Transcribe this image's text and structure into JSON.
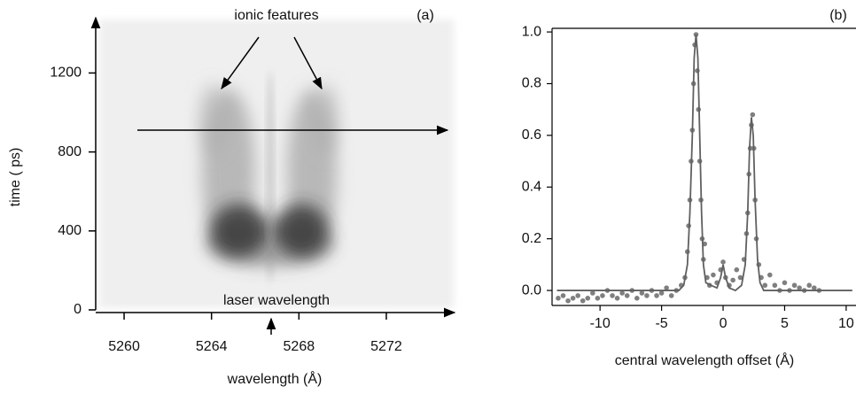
{
  "chart_data": [
    {
      "type": "image",
      "panel_label": "(a)",
      "x_label": "wavelength (Å)",
      "y_label": "time ( ps)",
      "annotations": [
        "ionic features",
        "laser wavelength"
      ],
      "xlim": [
        5258.7,
        5274.8
      ],
      "xticks": [
        5260,
        5264,
        5268,
        5272
      ],
      "ylim": [
        0,
        1480
      ],
      "yticks": [
        0,
        400,
        800,
        1200
      ]
    },
    {
      "type": "scatter",
      "panel_label": "(b)",
      "x_label": "central wavelength offset  (Å)",
      "xlim": [
        -13.9,
        10.8
      ],
      "xticks": [
        -10,
        -5,
        0,
        5,
        10
      ],
      "ylim": [
        -0.058,
        1.014
      ],
      "yticks": [
        {
          "value": 0,
          "label": "0.0"
        },
        {
          "value": 0.2,
          "label": "0.2"
        },
        {
          "value": 0.4,
          "label": "0.4"
        },
        {
          "value": 0.6,
          "label": "0.6"
        },
        {
          "value": 0.8,
          "label": "0.8"
        },
        {
          "value": 1,
          "label": "1.0"
        }
      ],
      "series": [
        {
          "mode": "markers",
          "color": "#7f7f7f",
          "x": [
            -13.4,
            -13.0,
            -12.6,
            -12.2,
            -11.8,
            -11.4,
            -11.0,
            -10.6,
            -10.2,
            -9.8,
            -9.4,
            -9.0,
            -8.6,
            -8.2,
            -7.8,
            -7.4,
            -7.0,
            -6.6,
            -6.2,
            -5.8,
            -5.4,
            -5.0,
            -4.6,
            -4.2,
            -3.8,
            -3.4,
            -3.1,
            -2.9,
            -2.8,
            -2.7,
            -2.6,
            -2.5,
            -2.4,
            -2.3,
            -2.2,
            -2.1,
            -2.0,
            -1.9,
            -1.8,
            -1.7,
            -1.6,
            -1.5,
            -1.3,
            -1.1,
            -0.8,
            -0.5,
            -0.2,
            0,
            0.2,
            0.5,
            0.8,
            1.1,
            1.4,
            1.7,
            1.9,
            2.0,
            2.1,
            2.2,
            2.3,
            2.4,
            2.5,
            2.6,
            2.7,
            2.9,
            3.1,
            3.4,
            3.8,
            4.2,
            4.6,
            5.0,
            5.4,
            5.8,
            6.2,
            6.6,
            7.0,
            7.4,
            7.8
          ],
          "values": [
            -0.03,
            -0.02,
            -0.04,
            -0.03,
            -0.02,
            -0.04,
            -0.03,
            -0.01,
            -0.03,
            -0.02,
            0.0,
            -0.02,
            -0.03,
            -0.01,
            -0.02,
            0.0,
            -0.03,
            -0.01,
            -0.02,
            0.0,
            -0.02,
            -0.01,
            0.01,
            -0.02,
            0.0,
            0.02,
            0.05,
            0.15,
            0.25,
            0.35,
            0.5,
            0.62,
            0.8,
            0.95,
            0.99,
            0.85,
            0.7,
            0.5,
            0.35,
            0.2,
            0.12,
            0.18,
            0.05,
            0.02,
            0.06,
            0.03,
            0.08,
            0.11,
            0.05,
            0.02,
            0.04,
            0.08,
            0.05,
            0.12,
            0.22,
            0.3,
            0.45,
            0.55,
            0.64,
            0.68,
            0.55,
            0.35,
            0.2,
            0.1,
            0.05,
            0.02,
            0.06,
            0.02,
            0.0,
            0.03,
            0.0,
            0.02,
            0.01,
            0.0,
            0.02,
            0.01,
            0.0
          ]
        },
        {
          "mode": "line",
          "color": "#606060",
          "x": [
            -13.5,
            -10,
            -5,
            -3.6,
            -3.2,
            -2.9,
            -2.7,
            -2.5,
            -2.35,
            -2.2,
            -2.05,
            -1.9,
            -1.75,
            -1.6,
            -1.4,
            -1.0,
            -0.5,
            -0.2,
            0,
            0.2,
            0.5,
            1.0,
            1.5,
            1.8,
            2.0,
            2.15,
            2.3,
            2.45,
            2.6,
            2.8,
            3.0,
            3.3,
            5,
            8,
            10.5
          ],
          "values": [
            0,
            0,
            0,
            0,
            0.02,
            0.1,
            0.3,
            0.6,
            0.9,
            0.99,
            0.9,
            0.6,
            0.3,
            0.1,
            0.03,
            0.02,
            0.01,
            0.05,
            0.1,
            0.05,
            0.01,
            0,
            0.02,
            0.1,
            0.3,
            0.55,
            0.67,
            0.6,
            0.35,
            0.12,
            0.03,
            0,
            0,
            0,
            0
          ]
        }
      ]
    }
  ]
}
